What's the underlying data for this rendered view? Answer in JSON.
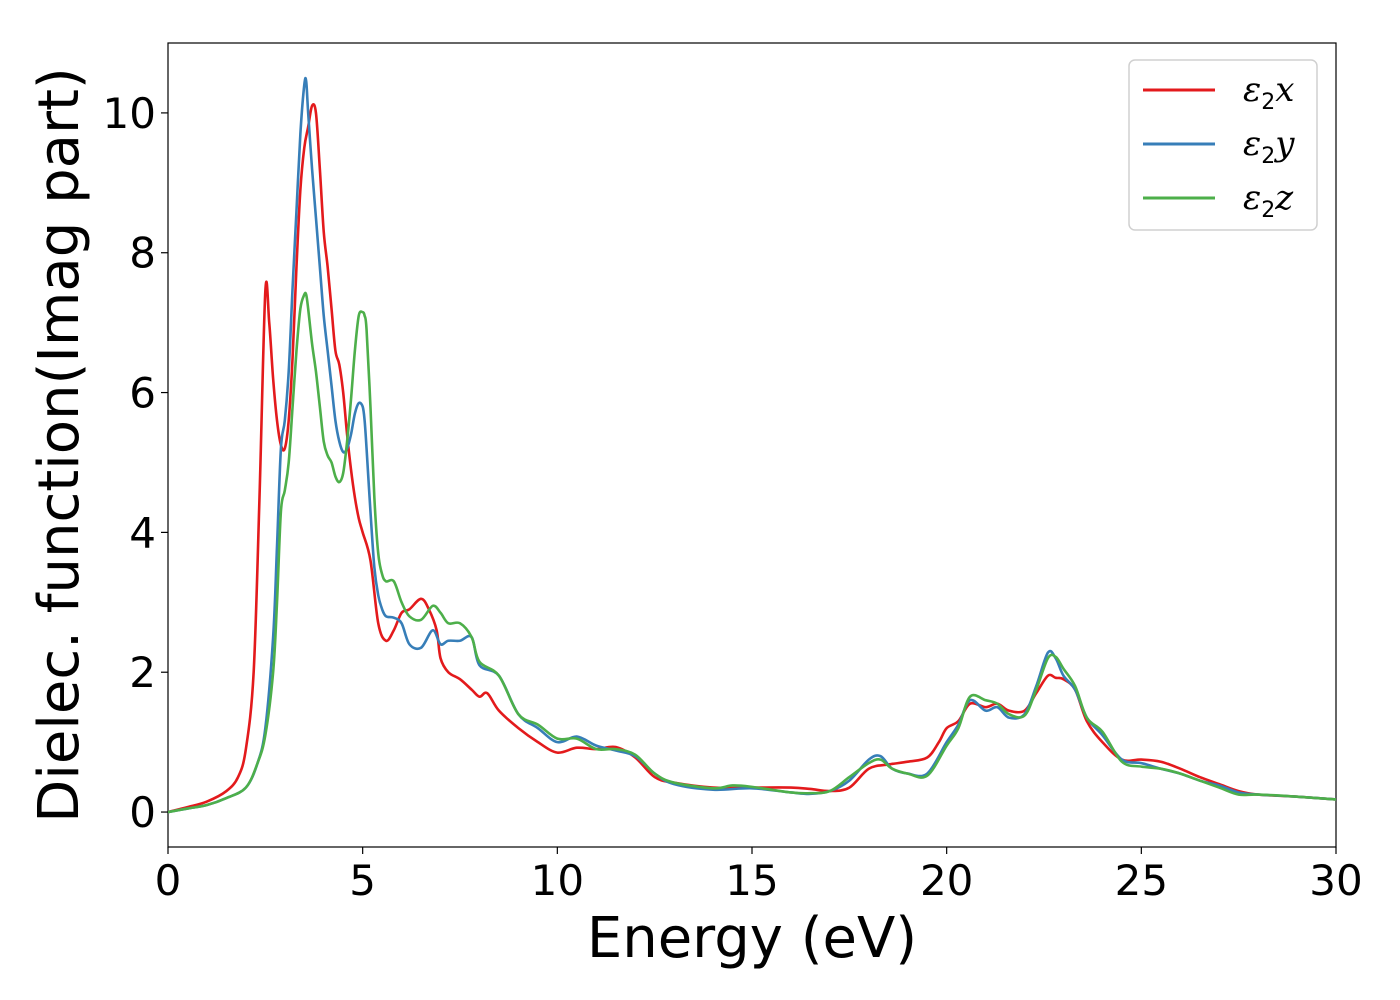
{
  "chart_data": {
    "type": "line",
    "xlabel": "Energy (eV)",
    "ylabel": "Dielec. function(Imag part)",
    "xlim": [
      0,
      30
    ],
    "ylim": [
      -0.5,
      11.0
    ],
    "xticks": [
      0,
      5,
      10,
      15,
      20,
      25,
      30
    ],
    "yticks": [
      0,
      2,
      4,
      6,
      8,
      10
    ],
    "grid": false,
    "legend_position": "top-right",
    "series": [
      {
        "name": "ε2x",
        "legend_symbol": "ε",
        "legend_sub": "2",
        "legend_var": "x",
        "color": "#e31a1c",
        "x": [
          0,
          0.5,
          1.0,
          1.5,
          1.8,
          2.0,
          2.2,
          2.35,
          2.5,
          2.6,
          2.7,
          2.8,
          2.9,
          3.0,
          3.1,
          3.2,
          3.3,
          3.4,
          3.5,
          3.6,
          3.7,
          3.8,
          3.9,
          4.0,
          4.1,
          4.2,
          4.3,
          4.4,
          4.5,
          4.6,
          4.7,
          4.8,
          4.9,
          5.0,
          5.2,
          5.4,
          5.6,
          5.8,
          6.0,
          6.2,
          6.5,
          6.7,
          6.9,
          7.0,
          7.2,
          7.5,
          7.8,
          8.0,
          8.2,
          8.5,
          9.0,
          9.5,
          10.0,
          10.5,
          11.0,
          11.5,
          12.0,
          12.5,
          13.0,
          14.0,
          15.0,
          16.0,
          16.5,
          17.0,
          17.5,
          18.0,
          18.5,
          19.0,
          19.5,
          19.8,
          20.0,
          20.3,
          20.6,
          21.0,
          21.3,
          21.6,
          22.0,
          22.3,
          22.6,
          22.8,
          23.0,
          23.3,
          23.6,
          24.0,
          24.5,
          25.0,
          25.5,
          26.0,
          26.5,
          27.0,
          27.5,
          28.0,
          29.0,
          30.0
        ],
        "y": [
          0.0,
          0.07,
          0.15,
          0.3,
          0.5,
          0.9,
          2.0,
          4.5,
          7.45,
          7.0,
          6.2,
          5.6,
          5.25,
          5.2,
          5.6,
          6.5,
          7.8,
          8.9,
          9.5,
          9.8,
          10.1,
          10.0,
          9.2,
          8.3,
          7.8,
          7.2,
          6.6,
          6.4,
          6.0,
          5.4,
          4.9,
          4.5,
          4.2,
          4.0,
          3.6,
          2.7,
          2.45,
          2.6,
          2.85,
          2.9,
          3.05,
          2.9,
          2.6,
          2.2,
          2.0,
          1.9,
          1.75,
          1.65,
          1.7,
          1.45,
          1.2,
          1.0,
          0.85,
          0.92,
          0.9,
          0.93,
          0.78,
          0.5,
          0.42,
          0.35,
          0.35,
          0.35,
          0.33,
          0.3,
          0.35,
          0.62,
          0.68,
          0.72,
          0.78,
          1.0,
          1.2,
          1.3,
          1.55,
          1.5,
          1.55,
          1.45,
          1.45,
          1.7,
          1.95,
          1.92,
          1.9,
          1.75,
          1.3,
          1.0,
          0.75,
          0.75,
          0.72,
          0.62,
          0.5,
          0.4,
          0.3,
          0.25,
          0.22,
          0.18
        ]
      },
      {
        "name": "ε2y",
        "legend_symbol": "ε",
        "legend_sub": "2",
        "legend_var": "y",
        "color": "#377eb8",
        "x": [
          0,
          0.5,
          1.0,
          1.5,
          2.0,
          2.3,
          2.5,
          2.7,
          2.8,
          2.9,
          3.0,
          3.1,
          3.2,
          3.3,
          3.4,
          3.5,
          3.55,
          3.6,
          3.7,
          3.8,
          3.9,
          4.0,
          4.1,
          4.2,
          4.3,
          4.4,
          4.5,
          4.6,
          4.7,
          4.8,
          4.9,
          5.0,
          5.05,
          5.1,
          5.2,
          5.3,
          5.4,
          5.5,
          5.6,
          5.8,
          6.0,
          6.2,
          6.5,
          6.8,
          7.0,
          7.2,
          7.5,
          7.8,
          8.0,
          8.5,
          9.0,
          9.5,
          10.0,
          10.5,
          11.0,
          11.5,
          12.0,
          12.5,
          13.0,
          14.0,
          15.0,
          16.0,
          16.5,
          17.0,
          17.5,
          18.0,
          18.3,
          18.6,
          19.0,
          19.5,
          20.0,
          20.3,
          20.6,
          21.0,
          21.3,
          21.6,
          22.0,
          22.3,
          22.6,
          22.8,
          23.0,
          23.3,
          23.6,
          24.0,
          24.5,
          25.0,
          25.5,
          26.0,
          26.5,
          27.0,
          27.5,
          28.0,
          29.0,
          30.0
        ],
        "y": [
          0.0,
          0.05,
          0.1,
          0.2,
          0.35,
          0.7,
          1.2,
          2.5,
          3.8,
          5.2,
          5.6,
          6.3,
          7.5,
          8.6,
          9.7,
          10.4,
          10.45,
          10.0,
          9.2,
          8.5,
          7.8,
          7.1,
          6.6,
          6.1,
          5.6,
          5.3,
          5.15,
          5.2,
          5.4,
          5.7,
          5.85,
          5.8,
          5.6,
          5.2,
          4.3,
          3.5,
          3.1,
          2.9,
          2.8,
          2.78,
          2.7,
          2.4,
          2.35,
          2.6,
          2.4,
          2.45,
          2.45,
          2.5,
          2.1,
          1.95,
          1.4,
          1.2,
          1.0,
          1.08,
          0.95,
          0.88,
          0.8,
          0.55,
          0.4,
          0.32,
          0.34,
          0.28,
          0.26,
          0.3,
          0.45,
          0.75,
          0.8,
          0.62,
          0.55,
          0.55,
          1.0,
          1.25,
          1.6,
          1.45,
          1.5,
          1.35,
          1.4,
          1.8,
          2.28,
          2.2,
          1.95,
          1.75,
          1.35,
          1.1,
          0.75,
          0.7,
          0.62,
          0.55,
          0.45,
          0.38,
          0.28,
          0.25,
          0.22,
          0.18
        ]
      },
      {
        "name": "ε2z",
        "legend_symbol": "ε",
        "legend_sub": "2",
        "legend_var": "z",
        "color": "#4daf4a",
        "x": [
          0,
          0.5,
          1.0,
          1.5,
          2.0,
          2.3,
          2.5,
          2.7,
          2.8,
          2.9,
          3.0,
          3.1,
          3.2,
          3.3,
          3.4,
          3.5,
          3.55,
          3.6,
          3.7,
          3.8,
          3.9,
          4.0,
          4.1,
          4.2,
          4.3,
          4.4,
          4.5,
          4.6,
          4.7,
          4.8,
          4.9,
          5.0,
          5.05,
          5.1,
          5.2,
          5.3,
          5.4,
          5.5,
          5.6,
          5.8,
          6.0,
          6.2,
          6.5,
          6.8,
          7.0,
          7.2,
          7.5,
          7.8,
          8.0,
          8.5,
          9.0,
          9.5,
          10.0,
          10.5,
          11.0,
          11.5,
          12.0,
          12.5,
          13.0,
          14.0,
          14.5,
          15.0,
          16.0,
          16.5,
          17.0,
          17.5,
          18.0,
          18.3,
          18.6,
          19.0,
          19.5,
          20.0,
          20.3,
          20.6,
          21.0,
          21.3,
          21.6,
          22.0,
          22.3,
          22.6,
          22.8,
          23.0,
          23.3,
          23.6,
          24.0,
          24.5,
          25.0,
          25.5,
          26.0,
          26.5,
          27.0,
          27.5,
          28.0,
          29.0,
          30.0
        ],
        "y": [
          0.0,
          0.05,
          0.1,
          0.2,
          0.35,
          0.7,
          1.1,
          2.0,
          3.0,
          4.3,
          4.6,
          5.0,
          5.8,
          6.6,
          7.2,
          7.4,
          7.4,
          7.2,
          6.7,
          6.3,
          5.8,
          5.3,
          5.1,
          5.0,
          4.8,
          4.72,
          4.85,
          5.3,
          5.9,
          6.6,
          7.1,
          7.15,
          7.1,
          6.9,
          5.8,
          4.5,
          3.7,
          3.4,
          3.3,
          3.3,
          3.0,
          2.8,
          2.75,
          2.95,
          2.85,
          2.7,
          2.7,
          2.5,
          2.15,
          1.95,
          1.4,
          1.25,
          1.05,
          1.05,
          0.9,
          0.9,
          0.82,
          0.55,
          0.42,
          0.34,
          0.38,
          0.36,
          0.28,
          0.27,
          0.3,
          0.5,
          0.7,
          0.75,
          0.62,
          0.55,
          0.52,
          0.95,
          1.2,
          1.65,
          1.6,
          1.55,
          1.4,
          1.38,
          1.75,
          2.2,
          2.22,
          2.05,
          1.8,
          1.35,
          1.15,
          0.72,
          0.65,
          0.62,
          0.55,
          0.45,
          0.35,
          0.25,
          0.25,
          0.22,
          0.18
        ]
      }
    ]
  }
}
